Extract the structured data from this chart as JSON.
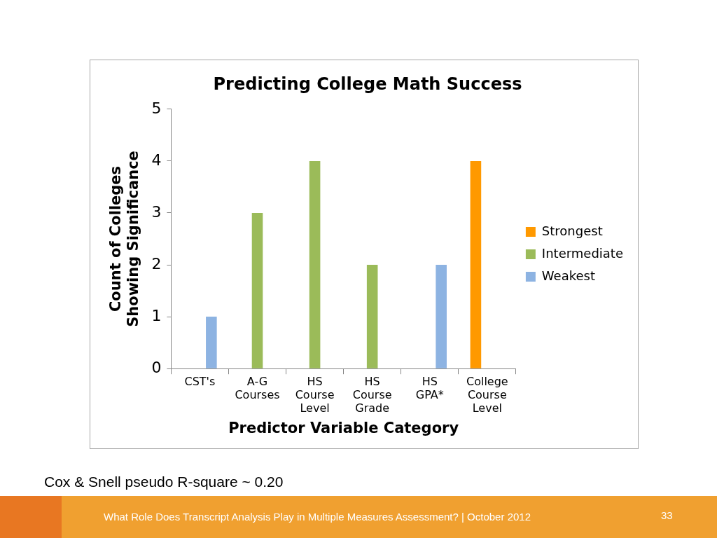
{
  "chart_data": {
    "type": "bar",
    "title": "Predicting College Math Success",
    "xlabel": "Predictor Variable Category",
    "ylabel": "Count of Colleges\nShowing Significance",
    "categories": [
      "CST's",
      "A-G Courses",
      "HS Course Level",
      "HS Course Grade",
      "HS GPA*",
      "College Course Level"
    ],
    "series": [
      {
        "name": "Strongest",
        "color": "#ff9900",
        "values": [
          null,
          null,
          null,
          null,
          null,
          4
        ]
      },
      {
        "name": "Intermediate",
        "color": "#9bbb59",
        "values": [
          null,
          3,
          4,
          2,
          null,
          null
        ]
      },
      {
        "name": "Weakest",
        "color": "#8db3e2",
        "values": [
          1,
          null,
          null,
          null,
          2,
          null
        ]
      }
    ],
    "ylim": [
      0,
      5
    ],
    "yticks": [
      0,
      1,
      2,
      3,
      4,
      5
    ],
    "legend": "right",
    "annotations": [
      "Cox & Snell pseudo R-square ~ 0.20",
      "What Role Does Transcript Analysis Play in Multiple Measures Assessment? | October 2012",
      "33"
    ]
  }
}
